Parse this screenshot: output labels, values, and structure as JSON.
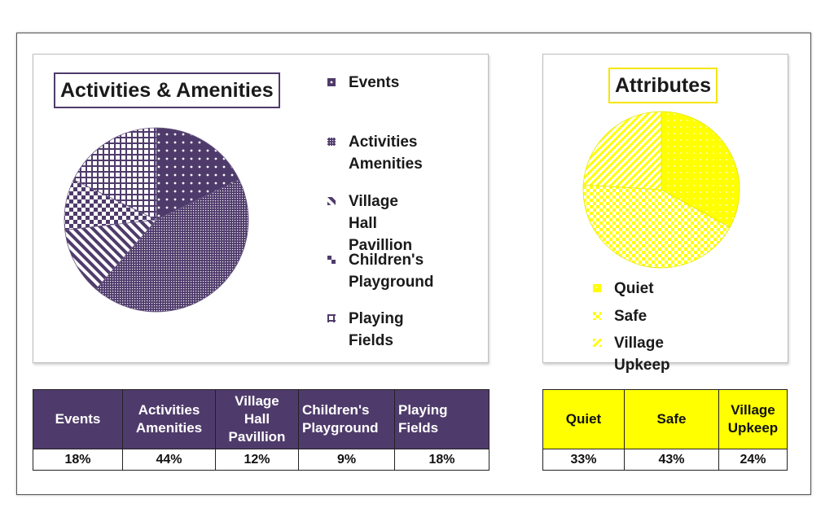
{
  "colors": {
    "purple": "#4f3b6b",
    "yellow": "#ffff00",
    "yellow_border": "#f3e600"
  },
  "chart_data": [
    {
      "type": "pie",
      "title": "Activities & Amenities",
      "categories": [
        "Events",
        "Activities Amenities",
        "Village Hall Pavillion",
        "Children's Playground",
        "Playing Fields"
      ],
      "legend_lines": [
        [
          "Events"
        ],
        [
          "Activities",
          "Amenities"
        ],
        [
          "Village Hall",
          "Pavillion"
        ],
        [
          "Children's",
          "Playground"
        ],
        [
          "Playing Fields"
        ]
      ],
      "values": [
        18,
        44,
        12,
        9,
        18
      ],
      "value_labels": [
        "18%",
        "44%",
        "12%",
        "9%",
        "18%"
      ],
      "table_headers": [
        [
          "Events"
        ],
        [
          "Activities",
          "Amenities"
        ],
        [
          "Village",
          "Hall",
          "Pavillion"
        ],
        [
          "Children's",
          "Playground"
        ],
        [
          "Playing",
          "Fields"
        ]
      ],
      "legend_position": "right",
      "color": "#4f3b6b"
    },
    {
      "type": "pie",
      "title": "Attributes",
      "categories": [
        "Quiet",
        "Safe",
        "Village Upkeep"
      ],
      "legend_lines": [
        [
          "Quiet"
        ],
        [
          "Safe"
        ],
        [
          "Village Upkeep"
        ]
      ],
      "values": [
        33,
        43,
        24
      ],
      "value_labels": [
        "33%",
        "43%",
        "24%"
      ],
      "table_headers": [
        [
          "Quiet"
        ],
        [
          "Safe"
        ],
        [
          "Village",
          "Upkeep"
        ]
      ],
      "legend_position": "bottom",
      "color": "#ffff00"
    }
  ]
}
